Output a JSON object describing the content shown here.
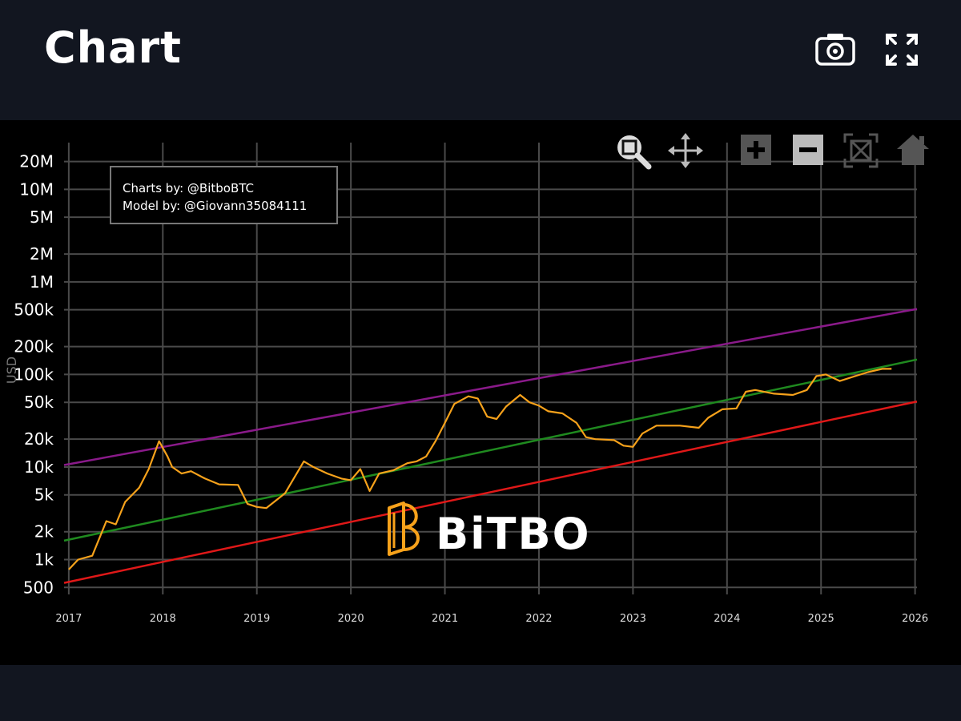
{
  "header": {
    "title": "Chart",
    "camera_icon": "camera-icon",
    "fullscreen_icon": "expand-icon"
  },
  "modebar": [
    "zoom-icon",
    "pan-icon",
    "zoom-in-icon",
    "zoom-out-icon",
    "autoscale-icon",
    "home-icon"
  ],
  "credits": {
    "line1": "Charts by: @BitboBTC",
    "line2": "Model by: @Giovann35084111"
  },
  "watermark": "BiTBO",
  "colors": {
    "price": "#f7a21b",
    "upper": "#8a1a8a",
    "middle": "#1f8a1f",
    "lower": "#e01818",
    "grid": "#4a4a4a"
  },
  "chart_data": {
    "type": "line",
    "ylabel": "USD",
    "yscale": "log",
    "ylim": [
      420,
      32000000
    ],
    "xlim": [
      2016.95,
      2026.02
    ],
    "grid": true,
    "xtick_labels": [
      "2017",
      "2018",
      "2019",
      "2020",
      "2021",
      "2022",
      "2023",
      "2024",
      "2025",
      "2026"
    ],
    "ytick_labels": [
      "500",
      "1k",
      "2k",
      "5k",
      "10k",
      "20k",
      "50k",
      "100k",
      "200k",
      "500k",
      "1M",
      "2M",
      "5M",
      "10M",
      "20M"
    ],
    "series": [
      {
        "color": "#f7a21b",
        "x": [
          2017.0,
          2017.1,
          2017.25,
          2017.4,
          2017.5,
          2017.6,
          2017.75,
          2017.85,
          2017.96,
          2018.05,
          2018.1,
          2018.2,
          2018.3,
          2018.45,
          2018.6,
          2018.8,
          2018.9,
          2019.0,
          2019.1,
          2019.3,
          2019.5,
          2019.6,
          2019.75,
          2019.9,
          2020.0,
          2020.1,
          2020.2,
          2020.3,
          2020.45,
          2020.6,
          2020.7,
          2020.8,
          2020.9,
          2021.0,
          2021.1,
          2021.25,
          2021.35,
          2021.45,
          2021.55,
          2021.65,
          2021.8,
          2021.9,
          2022.0,
          2022.1,
          2022.25,
          2022.4,
          2022.5,
          2022.6,
          2022.8,
          2022.9,
          2023.0,
          2023.1,
          2023.25,
          2023.5,
          2023.7,
          2023.8,
          2023.95,
          2024.1,
          2024.2,
          2024.3,
          2024.5,
          2024.7,
          2024.85,
          2024.95,
          2025.05,
          2025.2,
          2025.35,
          2025.5,
          2025.65,
          2025.75
        ],
        "y": [
          780,
          1000,
          1100,
          2600,
          2400,
          4200,
          6000,
          9500,
          19000,
          13000,
          10000,
          8500,
          9000,
          7500,
          6500,
          6400,
          4000,
          3700,
          3600,
          5200,
          11500,
          10000,
          8500,
          7500,
          7200,
          9500,
          5500,
          8500,
          9200,
          11000,
          11500,
          13000,
          19000,
          30000,
          48000,
          58000,
          55000,
          35000,
          33000,
          45000,
          60000,
          50000,
          46000,
          40000,
          38000,
          30000,
          21000,
          20000,
          19500,
          17000,
          16500,
          23000,
          28000,
          28000,
          26500,
          34000,
          42000,
          43000,
          65000,
          68000,
          62000,
          60000,
          68000,
          96000,
          100000,
          85000,
          95000,
          106000,
          115000,
          115000
        ]
      },
      {
        "color": "#8a1a8a",
        "x": [
          2016.95,
          2026.02
        ],
        "y": [
          10500,
          510000
        ]
      },
      {
        "color": "#1f8a1f",
        "x": [
          2016.95,
          2026.02
        ],
        "y": [
          1600,
          145000
        ]
      },
      {
        "color": "#e01818",
        "x": [
          2016.95,
          2026.02
        ],
        "y": [
          560,
          51000
        ]
      }
    ]
  }
}
